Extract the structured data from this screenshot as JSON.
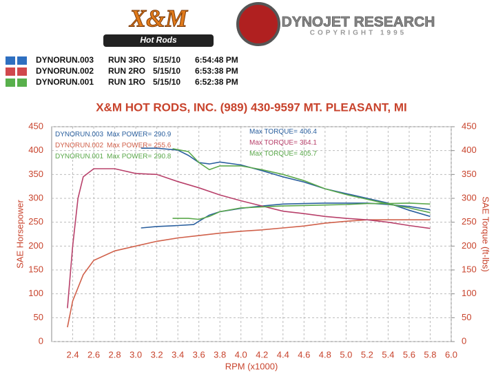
{
  "header": {
    "logo_left": "X&M",
    "logo_left_sub": "Hot Rods",
    "logo_right": "DYNOJET RESEARCH",
    "logo_right_sub": "COPYRIGHT 1995"
  },
  "runs": [
    {
      "file": "DYNORUN.003",
      "run": "RUN 3RO",
      "date": "5/15/10",
      "time": "6:54:48 PM",
      "color": "#2e6fc0"
    },
    {
      "file": "DYNORUN.002",
      "run": "RUN 2RO",
      "date": "5/15/10",
      "time": "6:53:38 PM",
      "color": "#d0484c"
    },
    {
      "file": "DYNORUN.001",
      "run": "RUN 1RO",
      "date": "5/15/10",
      "time": "6:52:38 PM",
      "color": "#58b04c"
    }
  ],
  "chart_data": {
    "type": "line",
    "title": "X&M HOT RODS, INC. (989) 430-9597 MT. PLEASANT, MI",
    "x_label": "RPM (x1000)",
    "y_label": "SAE Horsepower",
    "y2_label": "SAE Torque (ft-lbs)",
    "xlim": [
      2.2,
      6.0
    ],
    "xticks": [
      2.4,
      2.6,
      2.8,
      {
        "value": 3,
        "label": "3.0"
      },
      3.2,
      3.4,
      3.6,
      3.8,
      {
        "value": 4,
        "label": "4.0"
      },
      4.2,
      4.4,
      4.6,
      4.8,
      {
        "value": 5,
        "label": "5.0"
      },
      5.2,
      5.4,
      5.6,
      5.8,
      {
        "value": 6,
        "label": "6.0"
      }
    ],
    "ylim": [
      0,
      450
    ],
    "yticks": [
      0,
      50,
      100,
      150,
      200,
      250,
      300,
      350,
      400,
      450
    ],
    "y2lim": [
      0,
      450
    ],
    "y2ticks": [
      0,
      50,
      100,
      150,
      200,
      250,
      300,
      350,
      400,
      450
    ],
    "grid": true,
    "series": [
      {
        "name": "DYNORUN.003",
        "max_label": "Max POWER=",
        "max_value": 290.9,
        "color": "#2a5f9e",
        "x": [
          3.05,
          3.2,
          3.4,
          3.55,
          3.6,
          3.7,
          3.8,
          4.0,
          4.2,
          4.4,
          4.6,
          4.8,
          5.0,
          5.2,
          5.4,
          5.6,
          5.8
        ],
        "values": [
          238,
          241,
          243,
          245,
          252,
          265,
          272,
          279,
          284,
          288,
          289,
          290,
          290,
          290,
          287,
          283,
          276
        ]
      },
      {
        "max_label": "Max TORQUE=",
        "max_value": 406.4,
        "color": "#2a5f9e",
        "axis": "y2",
        "x": [
          3.05,
          3.2,
          3.4,
          3.5,
          3.6,
          3.7,
          3.8,
          4.0,
          4.2,
          4.4,
          4.6,
          4.8,
          5.0,
          5.2,
          5.4,
          5.6,
          5.8
        ],
        "values": [
          405,
          405,
          401,
          390,
          375,
          372,
          376,
          370,
          358,
          345,
          334,
          320,
          310,
          300,
          290,
          275,
          262
        ]
      },
      {
        "name": "DYNORUN.002",
        "max_label": "Max POWER=",
        "max_value": 255.6,
        "color": "#d0604a",
        "x": [
          2.35,
          2.4,
          2.5,
          2.6,
          2.8,
          3.0,
          3.2,
          3.4,
          3.6,
          3.8,
          4.0,
          4.2,
          4.4,
          4.6,
          4.8,
          5.0,
          5.2,
          5.4,
          5.6,
          5.8
        ],
        "values": [
          30,
          85,
          140,
          170,
          190,
          200,
          210,
          217,
          222,
          227,
          231,
          234,
          238,
          242,
          248,
          252,
          255,
          255,
          255,
          255
        ]
      },
      {
        "max_label": "Max TORQUE=",
        "max_value": 364.1,
        "color": "#b8406a",
        "axis": "y2",
        "x": [
          2.35,
          2.4,
          2.45,
          2.5,
          2.6,
          2.8,
          3.0,
          3.2,
          3.4,
          3.6,
          3.8,
          4.0,
          4.2,
          4.4,
          4.6,
          4.8,
          5.0,
          5.2,
          5.4,
          5.6,
          5.8
        ],
        "values": [
          70,
          200,
          300,
          345,
          362,
          362,
          352,
          350,
          335,
          322,
          307,
          295,
          284,
          273,
          268,
          262,
          258,
          255,
          250,
          243,
          237
        ]
      },
      {
        "name": "DYNORUN.001",
        "max_label": "Max POWER=",
        "max_value": 290.8,
        "color": "#5aa84a",
        "x": [
          3.35,
          3.5,
          3.6,
          3.7,
          3.8,
          4.0,
          4.2,
          4.4,
          4.6,
          4.8,
          5.0,
          5.2,
          5.4,
          5.6,
          5.8
        ],
        "values": [
          258,
          258,
          256,
          262,
          272,
          280,
          282,
          284,
          285,
          286,
          287,
          289,
          289,
          290,
          288
        ]
      },
      {
        "max_label": "Max TORQUE=",
        "max_value": 405.7,
        "color": "#5aa84a",
        "axis": "y2",
        "x": [
          3.35,
          3.5,
          3.6,
          3.7,
          3.8,
          4.0,
          4.2,
          4.4,
          4.6,
          4.8,
          5.0,
          5.2,
          5.4,
          5.6,
          5.8
        ],
        "values": [
          404,
          398,
          375,
          360,
          368,
          368,
          360,
          350,
          337,
          320,
          308,
          298,
          288,
          280,
          270
        ]
      }
    ]
  }
}
